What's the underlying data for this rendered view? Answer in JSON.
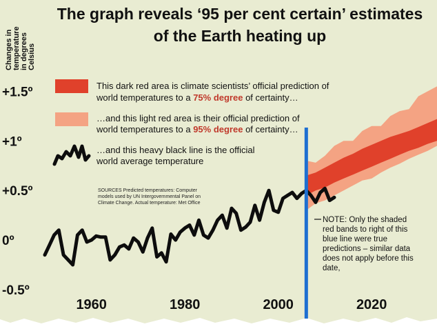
{
  "title_lines": [
    "The graph  reveals  ‘95 per cent certain’ estimates",
    "of the Earth heating up"
  ],
  "y_axis_title_lines": [
    "Changes in",
    "temperature",
    "in degrees",
    "Celsius"
  ],
  "legend": {
    "dark_band": {
      "color": "#e0412b",
      "line1": "This dark red area is climate scientists’ official prediction of",
      "line2_a": "world temperatures to a ",
      "line2_b": "75% degree",
      "line2_c": " of certainty…"
    },
    "light_band": {
      "color": "#f4a383",
      "line1": "…and this light red area is their official prediction of",
      "line2_a": "world temperatures to a ",
      "line2_b": "95% degree",
      "line2_c": " of certainty…"
    },
    "black_line": {
      "line1": "…and this heavy black line is the official",
      "line2": "world average temperature"
    }
  },
  "source_lines": [
    "SOURCES Predicted temperatures: Computer",
    "models used by UN Intergovernmental Panel on",
    "Climate Change. Actual temperature: Met Office"
  ],
  "note_lines": [
    "NOTE: Only the shaded",
    "red bands to right of this",
    "blue line were true",
    "predictions – similar data",
    "does not apply before this",
    "date,"
  ],
  "colors": {
    "background": "#e9ecd2",
    "observed_line": "#0d0d0d",
    "vertical_marker": "#1e6fd1",
    "accent_text": "#c0392b"
  },
  "chart_data": {
    "type": "line",
    "title": "The graph reveals ‘95 per cent certain’ estimates of the Earth heating up",
    "ylabel": "Changes in temperature in degrees Celsius",
    "xlabel": "",
    "xlim": [
      1950,
      2034
    ],
    "ylim": [
      -0.5,
      1.6
    ],
    "y_ticks": [
      -0.5,
      0,
      0.5,
      1,
      1.5
    ],
    "y_tick_labels": [
      "-0.5º",
      "0º",
      "+0.5º",
      "+1º",
      "+1.5º"
    ],
    "x_ticks": [
      1960,
      1980,
      2000,
      2020
    ],
    "x_tick_labels": [
      "1960",
      "1980",
      "2000",
      "2020"
    ],
    "grid": false,
    "vertical_marker_x": 2006,
    "series": [
      {
        "name": "world average temperature",
        "x": [
          1950,
          1951,
          1952,
          1953,
          1954,
          1955,
          1956,
          1957,
          1958,
          1959,
          1960,
          1961,
          1962,
          1963,
          1964,
          1965,
          1966,
          1967,
          1968,
          1969,
          1970,
          1971,
          1972,
          1973,
          1974,
          1975,
          1976,
          1977,
          1978,
          1979,
          1980,
          1981,
          1982,
          1983,
          1984,
          1985,
          1986,
          1987,
          1988,
          1989,
          1990,
          1991,
          1992,
          1993,
          1994,
          1995,
          1996,
          1997,
          1998,
          1999,
          2000,
          2001,
          2002,
          2003,
          2004,
          2005,
          2006,
          2007,
          2008,
          2009,
          2010,
          2011,
          2012
        ],
        "y": [
          -0.15,
          -0.05,
          0.05,
          0.1,
          -0.15,
          -0.2,
          -0.25,
          0.05,
          0.1,
          -0.02,
          0.0,
          0.04,
          0.03,
          0.03,
          -0.2,
          -0.15,
          -0.07,
          -0.05,
          -0.09,
          0.02,
          -0.02,
          -0.12,
          0.02,
          0.12,
          -0.17,
          -0.13,
          -0.22,
          0.06,
          0.0,
          0.08,
          0.12,
          0.15,
          0.05,
          0.2,
          0.05,
          0.02,
          0.1,
          0.2,
          0.25,
          0.12,
          0.32,
          0.27,
          0.1,
          0.13,
          0.18,
          0.35,
          0.2,
          0.38,
          0.5,
          0.3,
          0.28,
          0.42,
          0.45,
          0.48,
          0.42,
          0.47,
          0.5,
          0.45,
          0.38,
          0.48,
          0.52,
          0.4,
          0.43
        ]
      }
    ],
    "bands": [
      {
        "name": "95% degree of certainty",
        "color": "#f4a383",
        "x": [
          2006,
          2008,
          2010,
          2012,
          2014,
          2016,
          2018,
          2020,
          2022,
          2024,
          2026,
          2028,
          2030,
          2032,
          2034
        ],
        "low": [
          0.3,
          0.37,
          0.4,
          0.45,
          0.5,
          0.55,
          0.6,
          0.62,
          0.68,
          0.73,
          0.77,
          0.82,
          0.86,
          0.9,
          0.95
        ],
        "high": [
          0.8,
          0.78,
          0.85,
          0.95,
          1.0,
          1.0,
          1.1,
          1.15,
          1.15,
          1.25,
          1.3,
          1.32,
          1.45,
          1.5,
          1.55
        ]
      },
      {
        "name": "75% degree of certainty",
        "color": "#e0412b",
        "x": [
          2006,
          2008,
          2010,
          2012,
          2014,
          2016,
          2018,
          2020,
          2022,
          2024,
          2026,
          2028,
          2030,
          2032,
          2034
        ],
        "low": [
          0.45,
          0.5,
          0.53,
          0.58,
          0.62,
          0.66,
          0.7,
          0.74,
          0.78,
          0.82,
          0.86,
          0.9,
          0.93,
          0.97,
          1.0
        ],
        "high": [
          0.65,
          0.68,
          0.73,
          0.78,
          0.83,
          0.87,
          0.92,
          0.96,
          1.0,
          1.04,
          1.07,
          1.1,
          1.14,
          1.18,
          1.22
        ]
      }
    ]
  }
}
